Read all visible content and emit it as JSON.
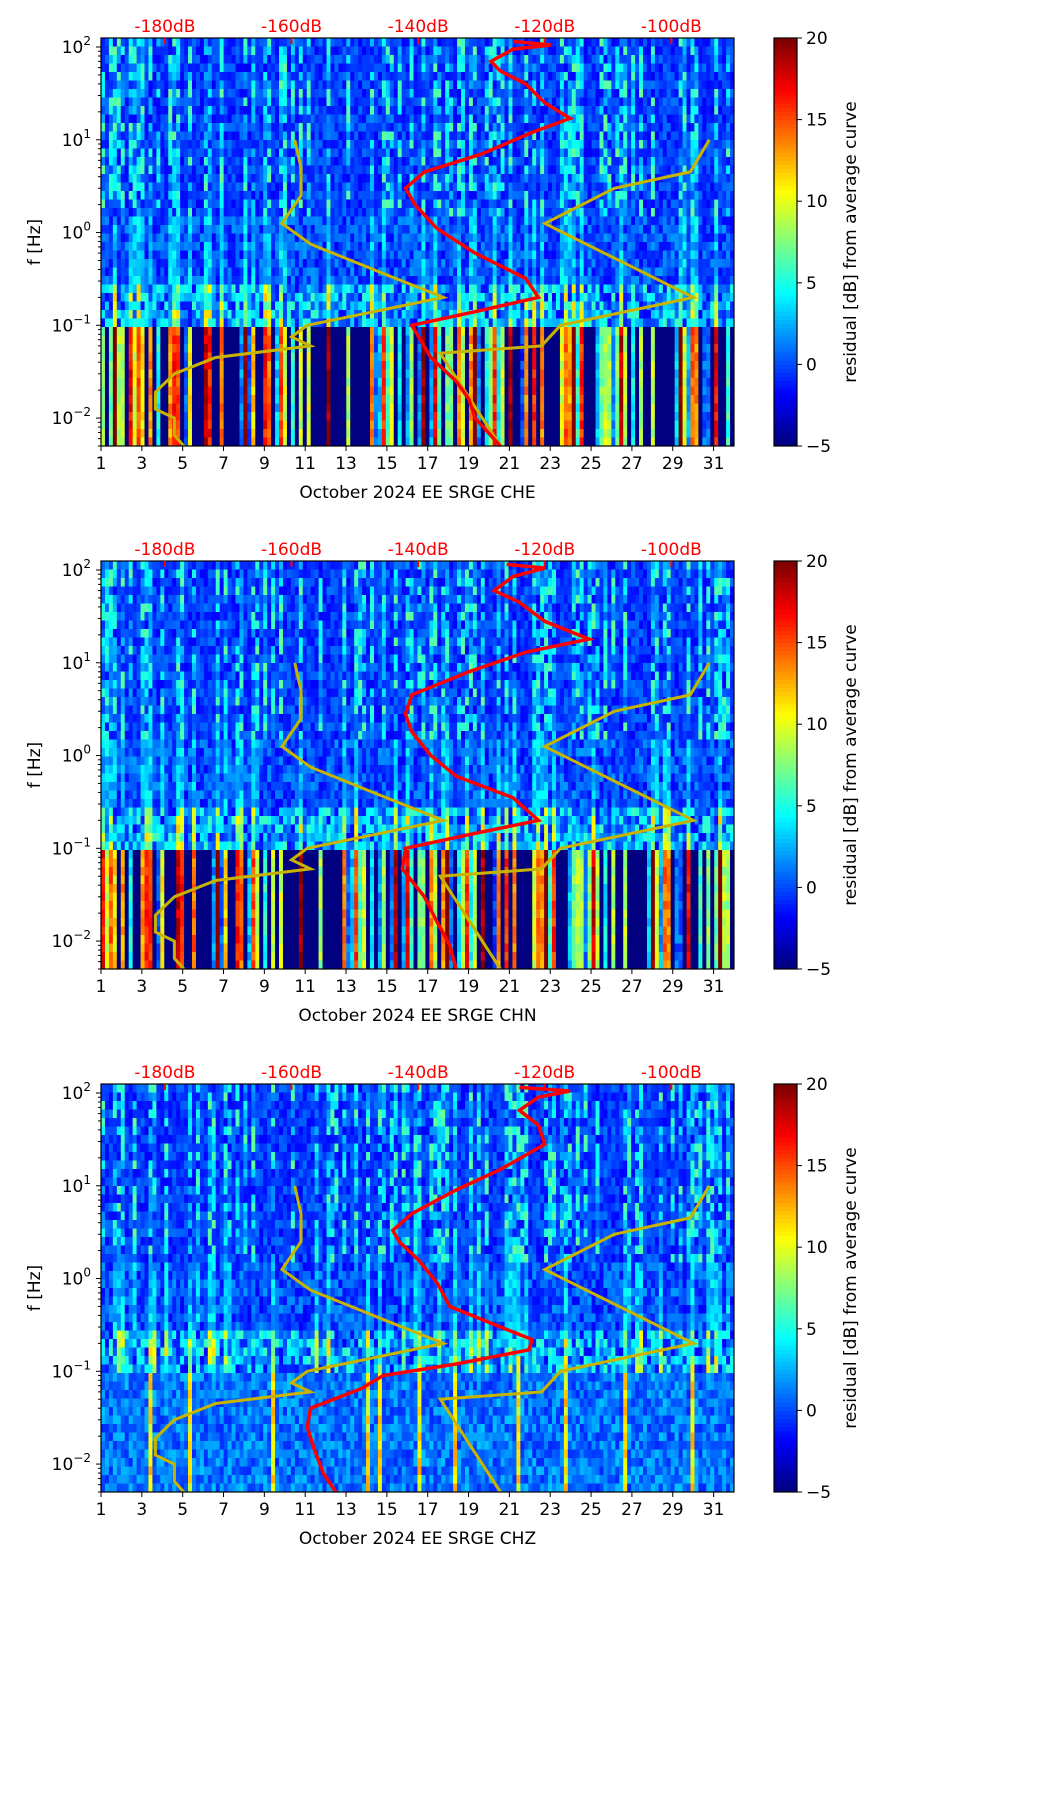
{
  "chart_data": {
    "type": "heatmap",
    "title": "",
    "colormap": "jet",
    "colorbar": {
      "label": "residual [dB] from average curve",
      "range": [
        -5,
        20
      ],
      "ticks": [
        -5,
        0,
        5,
        10,
        15,
        20
      ],
      "tick_labels": [
        "−5",
        "0",
        "5",
        "10",
        "15",
        "20"
      ]
    },
    "x_axis": {
      "range": [
        1,
        32
      ],
      "ticks": [
        1,
        3,
        5,
        7,
        9,
        11,
        13,
        15,
        17,
        19,
        21,
        23,
        25,
        27,
        29,
        31
      ],
      "tick_labels": [
        "1",
        "3",
        "5",
        "7",
        "9",
        "11",
        "13",
        "15",
        "17",
        "19",
        "21",
        "23",
        "25",
        "27",
        "29",
        "31"
      ]
    },
    "y_axis": {
      "label": "f [Hz]",
      "scale": "log",
      "range": [
        0.005,
        125
      ],
      "ticks": [
        0.01,
        0.1,
        1,
        10,
        100
      ],
      "tick_base": "10",
      "tick_exponents": [
        "−2",
        "−1",
        "0",
        "1",
        "2"
      ]
    },
    "db_axis": {
      "color": "#ff0000",
      "ticks": [
        -180,
        -160,
        -140,
        -120,
        -100
      ],
      "tick_labels": [
        "-180dB",
        "-160dB",
        "-140dB",
        "-120dB",
        "-100dB"
      ],
      "day_at_minus180": 4.13,
      "days_per_20db": 6.2
    },
    "reference_curve": {
      "name": "noise model (NLNM/NHNM)",
      "color": "#c8b400",
      "points_db_hz": [
        [
          -177,
          0.005
        ],
        [
          -178.5,
          0.0065
        ],
        [
          -178.5,
          0.01
        ],
        [
          -181.5,
          0.0125
        ],
        [
          -181.5,
          0.019
        ],
        [
          -178.5,
          0.03
        ],
        [
          -172,
          0.045
        ],
        [
          -157,
          0.06
        ],
        [
          -160,
          0.075
        ],
        [
          -157.5,
          0.1
        ],
        [
          -136,
          0.2
        ],
        [
          -145,
          0.35
        ],
        [
          -157,
          0.75
        ],
        [
          -161.5,
          1.25
        ],
        [
          -158.5,
          2.5
        ],
        [
          -158.5,
          5
        ],
        [
          -159.5,
          10
        ]
      ],
      "points_db_hz_high": [
        [
          -127,
          0.005
        ],
        [
          -136.5,
          0.05
        ],
        [
          -120.5,
          0.06
        ],
        [
          -117.5,
          0.1
        ],
        [
          -96.5,
          0.2
        ],
        [
          -120,
          1.25
        ],
        [
          -109,
          3
        ],
        [
          -97,
          4.5
        ],
        [
          -94,
          10
        ]
      ]
    },
    "panels": [
      {
        "xlabel": "October 2024 EE SRGE  CHE",
        "median_curve": {
          "color": "#ff0000",
          "points_db_hz": [
            [
              -127,
              0.005
            ],
            [
              -131,
              0.01
            ],
            [
              -132,
              0.016
            ],
            [
              -134,
              0.025
            ],
            [
              -138,
              0.045
            ],
            [
              -141,
              0.1
            ],
            [
              -131,
              0.14
            ],
            [
              -121,
              0.2
            ],
            [
              -123,
              0.32
            ],
            [
              -131,
              0.6
            ],
            [
              -137,
              1.1
            ],
            [
              -140.5,
              2.0
            ],
            [
              -142,
              3.0
            ],
            [
              -139,
              4.5
            ],
            [
              -130,
              7
            ],
            [
              -122,
              12
            ],
            [
              -116,
              17
            ],
            [
              -120,
              25
            ],
            [
              -123,
              40
            ],
            [
              -127,
              55
            ],
            [
              -128.5,
              70
            ],
            [
              -125,
              95
            ],
            [
              -119,
              105
            ],
            [
              -125,
              115
            ]
          ]
        }
      },
      {
        "xlabel": "October 2024 EE SRGE  CHN",
        "median_curve": {
          "color": "#ff0000",
          "points_db_hz": [
            [
              -134,
              0.005
            ],
            [
              -135,
              0.009
            ],
            [
              -137,
              0.016
            ],
            [
              -139,
              0.03
            ],
            [
              -142.5,
              0.06
            ],
            [
              -142,
              0.1
            ],
            [
              -132,
              0.14
            ],
            [
              -121,
              0.2
            ],
            [
              -125,
              0.35
            ],
            [
              -134,
              0.6
            ],
            [
              -138,
              1.0
            ],
            [
              -141,
              1.8
            ],
            [
              -142,
              2.8
            ],
            [
              -141,
              4.5
            ],
            [
              -132,
              8
            ],
            [
              -123,
              13
            ],
            [
              -113,
              18
            ],
            [
              -120,
              28
            ],
            [
              -124,
              45
            ],
            [
              -128,
              60
            ],
            [
              -125,
              85
            ],
            [
              -120,
              105
            ],
            [
              -126,
              115
            ]
          ]
        }
      },
      {
        "xlabel": "October 2024 EE SRGE  CHZ",
        "median_curve": {
          "color": "#ff0000",
          "points_db_hz": [
            [
              -153,
              0.005
            ],
            [
              -155,
              0.008
            ],
            [
              -156.5,
              0.015
            ],
            [
              -157.5,
              0.025
            ],
            [
              -157,
              0.04
            ],
            [
              -149,
              0.065
            ],
            [
              -145.5,
              0.09
            ],
            [
              -134,
              0.12
            ],
            [
              -122.5,
              0.17
            ],
            [
              -122,
              0.22
            ],
            [
              -127,
              0.3
            ],
            [
              -135,
              0.5
            ],
            [
              -137,
              0.9
            ],
            [
              -140,
              1.6
            ],
            [
              -143,
              2.5
            ],
            [
              -144,
              3.3
            ],
            [
              -141,
              5
            ],
            [
              -134,
              9
            ],
            [
              -127,
              15
            ],
            [
              -120,
              28
            ],
            [
              -121,
              45
            ],
            [
              -124,
              65
            ],
            [
              -121,
              90
            ],
            [
              -116,
              105
            ],
            [
              -124,
              115
            ]
          ]
        }
      }
    ]
  }
}
